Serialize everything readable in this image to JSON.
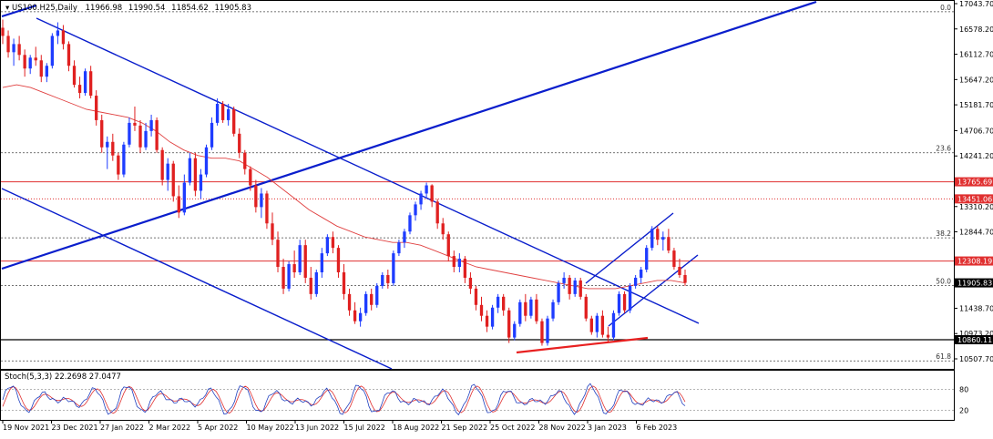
{
  "chart_data": [
    {
      "type": "candlestick",
      "title": "US100.H25,Daily",
      "ohlc_readout": [
        "11966.98",
        "11990.54",
        "11854.62",
        "11905.83"
      ],
      "price_axis_labels": [
        "17043.70",
        "16578.20",
        "16112.70",
        "15647.20",
        "15181.70",
        "14706.70",
        "14241.20",
        "13310.20",
        "12844.70",
        "11438.70",
        "10973.20",
        "10507.70"
      ],
      "date_labels": [
        "19 Nov 2021",
        "23 Dec 2021",
        "27 Jan 2022",
        "2 Mar 2022",
        "5 Apr 2022",
        "10 May 2022",
        "13 Jun 2022",
        "15 Jul 2022",
        "18 Aug 2022",
        "21 Sep 2022",
        "25 Oct 2022",
        "28 Nov 2022",
        "3 Jan 2023",
        "6 Feb 2023"
      ],
      "fib_levels": [
        {
          "label": "0.0",
          "price": 16895
        },
        {
          "label": "23.6",
          "price": 14300
        },
        {
          "label": "38.2",
          "price": 12735
        },
        {
          "label": "50.0",
          "price": 11855
        },
        {
          "label": "61.8",
          "price": 10470
        }
      ],
      "price_lines": [
        {
          "label": "13765.69",
          "price": 13765.69,
          "color": "#e03030",
          "style": "solid"
        },
        {
          "label": "13451.06",
          "price": 13451.06,
          "color": "#e03030",
          "style": "dotted"
        },
        {
          "label": "12308.19",
          "price": 12308.19,
          "color": "#e03030",
          "style": "solid"
        },
        {
          "label": "11905.83",
          "price": 11905.83,
          "color": "#000000",
          "style": "current"
        },
        {
          "label": "10860.11",
          "price": 10860.11,
          "color": "#000000",
          "style": "solid"
        }
      ],
      "series": [
        {
          "values": [
            [
              16600,
              16750,
              16300,
              16450
            ],
            [
              16450,
              16550,
              16050,
              16150
            ],
            [
              16150,
              16400,
              15900,
              16300
            ],
            [
              16300,
              16450,
              16000,
              16100
            ],
            [
              16100,
              16200,
              15700,
              15850
            ],
            [
              15850,
              16100,
              15750,
              16050
            ],
            [
              16050,
              16250,
              15900,
              16000
            ],
            [
              16000,
              16100,
              15600,
              15700
            ],
            [
              15700,
              15950,
              15600,
              15900
            ],
            [
              15900,
              16500,
              15850,
              16450
            ],
            [
              16450,
              16700,
              16300,
              16550
            ],
            [
              16550,
              16650,
              16200,
              16300
            ],
            [
              16300,
              16350,
              15800,
              15900
            ],
            [
              15900,
              16000,
              15500,
              15550
            ],
            [
              15550,
              15700,
              15300,
              15400
            ],
            [
              15400,
              15850,
              15350,
              15800
            ],
            [
              15800,
              15900,
              15300,
              15350
            ],
            [
              15350,
              15450,
              14800,
              14900
            ],
            [
              14900,
              15000,
              14300,
              14400
            ],
            [
              14400,
              14600,
              14000,
              14500
            ],
            [
              14500,
              14650,
              14150,
              14250
            ],
            [
              14250,
              14300,
              13800,
              13900
            ],
            [
              13900,
              14500,
              13850,
              14450
            ],
            [
              14450,
              14950,
              14400,
              14850
            ],
            [
              14850,
              15150,
              14700,
              14800
            ],
            [
              14800,
              14900,
              14300,
              14400
            ],
            [
              14400,
              14850,
              14350,
              14700
            ],
            [
              14700,
              15000,
              14600,
              14900
            ],
            [
              14900,
              14950,
              14300,
              14350
            ],
            [
              14350,
              14400,
              13700,
              13800
            ],
            [
              13800,
              14200,
              13600,
              14100
            ],
            [
              14100,
              14150,
              13400,
              13500
            ],
            [
              13500,
              13700,
              13100,
              13200
            ],
            [
              13200,
              13900,
              13150,
              13750
            ],
            [
              13750,
              14300,
              13700,
              14200
            ],
            [
              14200,
              14300,
              13500,
              13600
            ],
            [
              13600,
              14000,
              13450,
              13900
            ],
            [
              13900,
              14450,
              13850,
              14400
            ],
            [
              14400,
              14950,
              14350,
              14850
            ],
            [
              14850,
              15300,
              14800,
              15200
            ],
            [
              15200,
              15250,
              14850,
              14900
            ],
            [
              14900,
              15200,
              14800,
              15100
            ],
            [
              15100,
              15150,
              14600,
              14650
            ],
            [
              14650,
              14750,
              14200,
              14300
            ],
            [
              14300,
              14350,
              13900,
              14000
            ],
            [
              14000,
              14050,
              13600,
              13700
            ],
            [
              13700,
              13800,
              13200,
              13300
            ],
            [
              13300,
              13650,
              13100,
              13550
            ],
            [
              13550,
              13600,
              12900,
              13000
            ],
            [
              13000,
              13200,
              12600,
              12700
            ],
            [
              12700,
              12850,
              12100,
              12200
            ],
            [
              12200,
              12350,
              11700,
              11800
            ],
            [
              11800,
              12300,
              11750,
              12250
            ],
            [
              12250,
              12500,
              12000,
              12100
            ],
            [
              12100,
              12700,
              12050,
              12600
            ],
            [
              12600,
              12700,
              11900,
              12000
            ],
            [
              12000,
              12200,
              11600,
              11700
            ],
            [
              11700,
              12150,
              11650,
              12100
            ],
            [
              12100,
              12550,
              12000,
              12450
            ],
            [
              12450,
              12800,
              12400,
              12750
            ],
            [
              12750,
              12850,
              12450,
              12550
            ],
            [
              12550,
              12600,
              12000,
              12100
            ],
            [
              12100,
              12250,
              11600,
              11700
            ],
            [
              11700,
              11800,
              11300,
              11400
            ],
            [
              11400,
              11550,
              11150,
              11200
            ],
            [
              11200,
              11450,
              11100,
              11350
            ],
            [
              11350,
              11750,
              11300,
              11700
            ],
            [
              11700,
              11800,
              11400,
              11500
            ],
            [
              11500,
              11900,
              11450,
              11850
            ],
            [
              11850,
              12100,
              11800,
              12050
            ],
            [
              12050,
              12150,
              11800,
              11900
            ],
            [
              11900,
              12500,
              11850,
              12450
            ],
            [
              12450,
              12700,
              12400,
              12650
            ],
            [
              12650,
              12900,
              12550,
              12850
            ],
            [
              12850,
              13200,
              12800,
              13150
            ],
            [
              13150,
              13400,
              13050,
              13350
            ],
            [
              13350,
              13600,
              13250,
              13550
            ],
            [
              13550,
              13750,
              13450,
              13700
            ],
            [
              13700,
              13720,
              13300,
              13400
            ],
            [
              13400,
              13450,
              12900,
              13000
            ],
            [
              13000,
              13100,
              12700,
              12800
            ],
            [
              12800,
              12850,
              12300,
              12400
            ],
            [
              12400,
              12500,
              12100,
              12200
            ],
            [
              12200,
              12450,
              12100,
              12350
            ],
            [
              12350,
              12400,
              11900,
              12000
            ],
            [
              12000,
              12100,
              11700,
              11800
            ],
            [
              11800,
              11850,
              11400,
              11500
            ],
            [
              11500,
              11650,
              11200,
              11300
            ],
            [
              11300,
              11400,
              11000,
              11100
            ],
            [
              11100,
              11500,
              11050,
              11450
            ],
            [
              11450,
              11700,
              11350,
              11650
            ],
            [
              11650,
              11700,
              11300,
              11400
            ],
            [
              11400,
              11450,
              10800,
              10900
            ],
            [
              10900,
              11200,
              10850,
              11150
            ],
            [
              11150,
              11600,
              11100,
              11550
            ],
            [
              11550,
              11700,
              11200,
              11300
            ],
            [
              11300,
              11650,
              11250,
              11600
            ],
            [
              11600,
              11700,
              11150,
              11200
            ],
            [
              11200,
              11250,
              10750,
              10800
            ],
            [
              10800,
              11300,
              10750,
              11250
            ],
            [
              11250,
              11600,
              11200,
              11550
            ],
            [
              11550,
              11950,
              11500,
              11900
            ],
            [
              11900,
              12100,
              11800,
              12000
            ],
            [
              12000,
              12050,
              11600,
              11700
            ],
            [
              11700,
              12000,
              11650,
              11950
            ],
            [
              11950,
              12000,
              11600,
              11650
            ],
            [
              11650,
              11700,
              11200,
              11250
            ],
            [
              11250,
              11300,
              10950,
              11000
            ],
            [
              11000,
              11350,
              10900,
              11300
            ],
            [
              11300,
              11400,
              10900,
              10950
            ],
            [
              10950,
              11100,
              10800,
              10900
            ],
            [
              10900,
              11400,
              10850,
              11350
            ],
            [
              11350,
              11750,
              11300,
              11700
            ],
            [
              11700,
              11750,
              11350,
              11400
            ],
            [
              11400,
              11900,
              11350,
              11850
            ],
            [
              11850,
              12050,
              11800,
              12000
            ],
            [
              12000,
              12200,
              11900,
              12150
            ],
            [
              12150,
              12600,
              12100,
              12550
            ],
            [
              12550,
              12950,
              12500,
              12900
            ],
            [
              12900,
              12950,
              12600,
              12700
            ],
            [
              12700,
              12850,
              12500,
              12750
            ],
            [
              12750,
              12900,
              12450,
              12500
            ],
            [
              12500,
              12550,
              12150,
              12200
            ],
            [
              12200,
              12350,
              12000,
              12050
            ],
            [
              12050,
              12150,
              11850,
              11906
            ]
          ]
        },
        {
          "name": "",
          "values": [
            15500,
            15550,
            15500,
            15400,
            15300,
            15200,
            15100,
            15050,
            15000,
            14950,
            14850,
            14700,
            14500,
            14350,
            14250,
            14200,
            14200,
            14150,
            14000,
            13850,
            13650,
            13450,
            13250,
            13100,
            12950,
            12850,
            12750,
            12700,
            12650,
            12650,
            12600,
            12500,
            12400,
            12300,
            12200,
            12150,
            12100,
            12050,
            12000,
            11950,
            11900,
            11850,
            11800,
            11800,
            11800,
            11850,
            11900,
            11950,
            11950,
            11906
          ]
        }
      ],
      "stochastic": {
        "label": "Stoch(5,3,3) 22.2698 27.0477",
        "axis_labels": [
          "80",
          "20"
        ],
        "k_color": "#2040c0",
        "d_color": "#e03030"
      },
      "drawn_lines_color": "#0a1ecc",
      "support_line_color": "#e82020",
      "up_candle_color": "#1e3cff",
      "down_candle_color": "#e02020",
      "ma_color": "#e04040"
    }
  ]
}
